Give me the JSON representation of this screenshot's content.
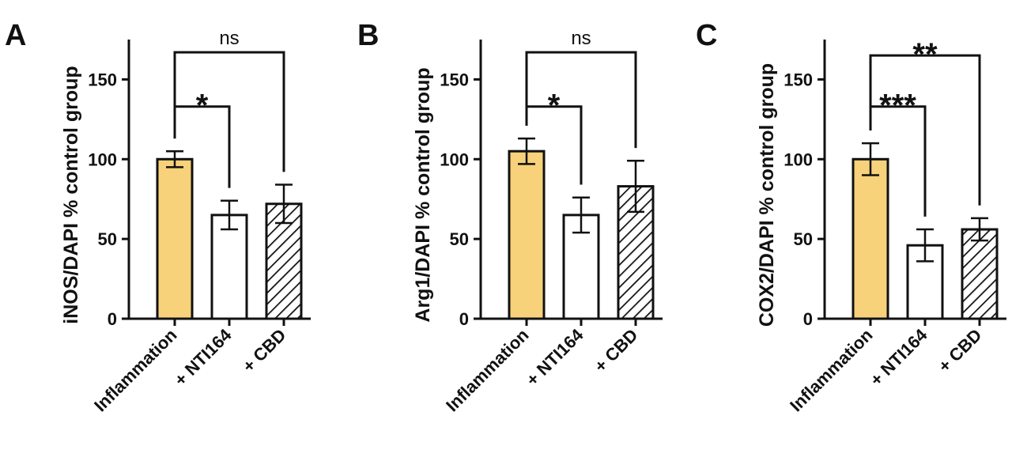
{
  "chart_data": [
    {
      "type": "bar",
      "panel_label": "A",
      "categories": [
        "Inflammation",
        "+ NTI164",
        "+ CBD"
      ],
      "values": [
        100,
        65,
        72
      ],
      "errors": [
        5,
        9,
        12
      ],
      "ylabel": "iNOS/DAPI % control group",
      "ylim": [
        0,
        175
      ],
      "yticks": [
        0,
        50,
        100,
        150
      ],
      "grid": false,
      "bar_styles": [
        "fill",
        "open",
        "hatched"
      ],
      "significance": [
        {
          "from": 0,
          "to": 1,
          "label": "*"
        },
        {
          "from": 0,
          "to": 2,
          "label": "ns"
        }
      ]
    },
    {
      "type": "bar",
      "panel_label": "B",
      "categories": [
        "Inflammation",
        "+ NTI164",
        "+ CBD"
      ],
      "values": [
        105,
        65,
        83
      ],
      "errors": [
        8,
        11,
        16
      ],
      "ylabel": "Arg1/DAPI % control group",
      "ylim": [
        0,
        175
      ],
      "yticks": [
        0,
        50,
        100,
        150
      ],
      "grid": false,
      "bar_styles": [
        "fill",
        "open",
        "hatched"
      ],
      "significance": [
        {
          "from": 0,
          "to": 1,
          "label": "*"
        },
        {
          "from": 0,
          "to": 2,
          "label": "ns"
        }
      ]
    },
    {
      "type": "bar",
      "panel_label": "C",
      "categories": [
        "Inflammation",
        "+ NTI164",
        "+ CBD"
      ],
      "values": [
        100,
        46,
        56
      ],
      "errors": [
        10,
        10,
        7
      ],
      "ylabel": "COX2/DAPI % control group",
      "ylim": [
        0,
        175
      ],
      "yticks": [
        0,
        50,
        100,
        150
      ],
      "grid": false,
      "bar_styles": [
        "fill",
        "open",
        "hatched"
      ],
      "significance": [
        {
          "from": 0,
          "to": 1,
          "label": "***"
        },
        {
          "from": 0,
          "to": 2,
          "label": "**"
        }
      ]
    }
  ],
  "colors": {
    "fill_bar": "#F8D27A",
    "stroke": "#111111",
    "open_bar": "#FFFFFF"
  }
}
